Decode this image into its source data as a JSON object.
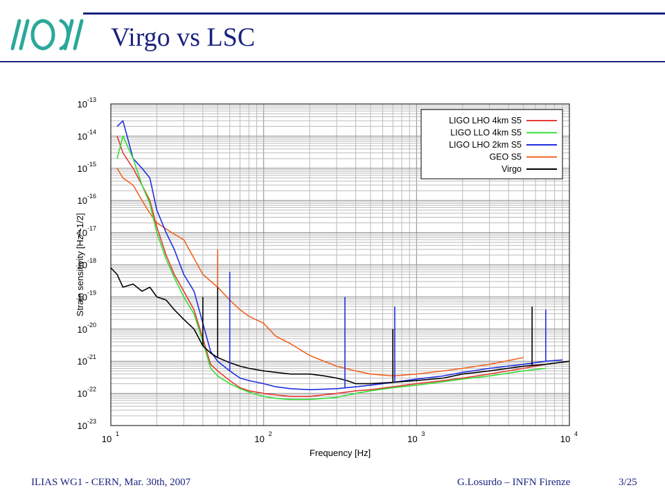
{
  "slide": {
    "title": "Virgo vs LSC",
    "footer_left": "ILIAS WG1 - CERN, Mar. 30th, 2007",
    "footer_right": "G.Losurdo – INFN Firenze",
    "page": "3/25"
  },
  "colors": {
    "accent": "#1a237e",
    "logo": "#2aa89a"
  },
  "chart_data": {
    "type": "line",
    "xscale": "log",
    "yscale": "log",
    "xlim": [
      10,
      10000
    ],
    "ylim": [
      1e-23,
      1e-13
    ],
    "xlabel": "Frequency [Hz]",
    "ylabel": "Strain sensitivity [Hz^-1/2]",
    "x_ticks": [
      {
        "base": "10",
        "exp": "1"
      },
      {
        "base": "10",
        "exp": "2"
      },
      {
        "base": "10",
        "exp": "3"
      },
      {
        "base": "10",
        "exp": "4"
      }
    ],
    "y_ticks": [
      {
        "base": "10",
        "exp": "-13"
      },
      {
        "base": "10",
        "exp": "-14"
      },
      {
        "base": "10",
        "exp": "-15"
      },
      {
        "base": "10",
        "exp": "-16"
      },
      {
        "base": "10",
        "exp": "-17"
      },
      {
        "base": "10",
        "exp": "-18"
      },
      {
        "base": "10",
        "exp": "-19"
      },
      {
        "base": "10",
        "exp": "-20"
      },
      {
        "base": "10",
        "exp": "-21"
      },
      {
        "base": "10",
        "exp": "-22"
      },
      {
        "base": "10",
        "exp": "-23"
      }
    ],
    "grid": true,
    "legend_position": "top-right",
    "series": [
      {
        "name": "LIGO LHO 4km S5",
        "color": "#e53935",
        "x": [
          11,
          12,
          14,
          16,
          18,
          20,
          23,
          26,
          30,
          35,
          40,
          45,
          50,
          60,
          70,
          80,
          100,
          120,
          150,
          200,
          300,
          400,
          500,
          700,
          1000,
          1500,
          2000,
          3000,
          5000,
          7000
        ],
        "y": [
          1e-14,
          3e-15,
          1e-15,
          3e-16,
          1e-16,
          1.5e-17,
          2e-18,
          5e-19,
          1.5e-19,
          4e-20,
          5e-21,
          8e-22,
          5e-22,
          2.5e-22,
          1.5e-22,
          1.2e-22,
          1e-22,
          9e-23,
          8e-23,
          8e-23,
          1e-22,
          1.2e-22,
          1.3e-22,
          1.6e-22,
          2e-22,
          2.5e-22,
          3e-22,
          4e-22,
          6e-22,
          8e-22
        ]
      },
      {
        "name": "LIGO LLO 4km S5",
        "color": "#33dd33",
        "x": [
          11,
          12,
          14,
          16,
          18,
          20,
          23,
          26,
          30,
          35,
          40,
          45,
          50,
          60,
          70,
          80,
          100,
          120,
          150,
          200,
          300,
          400,
          500,
          700,
          1000,
          1500,
          2000,
          3000,
          5000,
          7000
        ],
        "y": [
          2e-15,
          1e-14,
          2e-15,
          3e-16,
          8e-17,
          1e-17,
          1.5e-18,
          4e-19,
          1e-19,
          3e-20,
          4e-21,
          6e-22,
          3.5e-22,
          2e-22,
          1.4e-22,
          1.1e-22,
          8e-23,
          7e-23,
          6.5e-23,
          6.5e-23,
          7.5e-23,
          1e-22,
          1.2e-22,
          1.5e-22,
          1.8e-22,
          2.3e-22,
          2.8e-22,
          3.5e-22,
          5e-22,
          6e-22
        ]
      },
      {
        "name": "LIGO LHO 2km S5",
        "color": "#1f2ee0",
        "x": [
          11,
          12,
          14,
          16,
          18,
          20,
          23,
          26,
          30,
          35,
          40,
          45,
          50,
          60,
          70,
          80,
          100,
          120,
          150,
          200,
          300,
          400,
          500,
          700,
          1000,
          1500,
          2000,
          3000,
          5000,
          7000,
          9000
        ],
        "y": [
          2e-14,
          3e-14,
          2e-15,
          1e-15,
          5e-16,
          5e-17,
          1e-17,
          3e-18,
          5e-19,
          1.5e-19,
          1.5e-20,
          2e-21,
          1e-21,
          5e-22,
          3e-22,
          2.5e-22,
          2e-22,
          1.6e-22,
          1.4e-22,
          1.3e-22,
          1.4e-22,
          1.6e-22,
          1.8e-22,
          2.2e-22,
          2.8e-22,
          3.5e-22,
          4.5e-22,
          6e-22,
          8e-22,
          1e-21,
          1.1e-21
        ]
      },
      {
        "name": "GEO S5",
        "color": "#f26322",
        "x": [
          11,
          12,
          14,
          16,
          18,
          20,
          25,
          30,
          40,
          50,
          60,
          70,
          80,
          100,
          120,
          150,
          200,
          300,
          400,
          500,
          700,
          1000,
          1500,
          2000,
          3000,
          5000
        ],
        "y": [
          1e-15,
          5e-16,
          3e-16,
          1e-16,
          4e-17,
          2e-17,
          1e-17,
          6e-18,
          5e-19,
          2e-19,
          8e-20,
          4e-20,
          2.5e-20,
          1.5e-20,
          6e-21,
          3.5e-21,
          1.5e-21,
          7e-22,
          5e-22,
          4e-22,
          3.5e-22,
          4e-22,
          5e-22,
          6e-22,
          8e-22,
          1.3e-21
        ]
      },
      {
        "name": "Virgo",
        "color": "#000000",
        "x": [
          10,
          11,
          12,
          14,
          16,
          18,
          20,
          23,
          26,
          30,
          35,
          40,
          45,
          50,
          60,
          70,
          80,
          100,
          120,
          150,
          200,
          250,
          300,
          350,
          400,
          500,
          700,
          1000,
          1500,
          2000,
          3000,
          5000,
          7000,
          10000
        ],
        "y": [
          8e-19,
          5e-19,
          2e-19,
          2.5e-19,
          1.5e-19,
          2e-19,
          1e-19,
          8e-20,
          4e-20,
          2e-20,
          1e-20,
          3e-21,
          1.8e-21,
          1.3e-21,
          9e-22,
          7e-22,
          6e-22,
          5e-22,
          4.5e-22,
          4e-22,
          4e-22,
          3.5e-22,
          3e-22,
          2.5e-22,
          2e-22,
          2e-22,
          2.2e-22,
          2.5e-22,
          3e-22,
          4e-22,
          5e-22,
          7e-22,
          8e-22,
          1e-21
        ]
      }
    ],
    "peaks": [
      {
        "series": "Virgo",
        "x": 50,
        "y": 2e-18
      },
      {
        "series": "Virgo",
        "x": 40,
        "y": 1e-19
      },
      {
        "series": "LIGO LHO 2km S5",
        "x": 60,
        "y": 6e-19
      },
      {
        "series": "LIGO LHO 2km S5",
        "x": 340,
        "y": 1e-19
      },
      {
        "series": "LIGO LHO 2km S5",
        "x": 720,
        "y": 5e-20
      },
      {
        "series": "GEO S5",
        "x": 50,
        "y": 3e-18
      },
      {
        "series": "GEO S5",
        "x": 700,
        "y": 1e-20
      },
      {
        "series": "Virgo",
        "x": 5700,
        "y": 5e-20
      },
      {
        "series": "Virgo",
        "x": 700,
        "y": 1e-20
      },
      {
        "series": "LIGO LHO 2km S5",
        "x": 7000,
        "y": 4e-20
      }
    ]
  }
}
